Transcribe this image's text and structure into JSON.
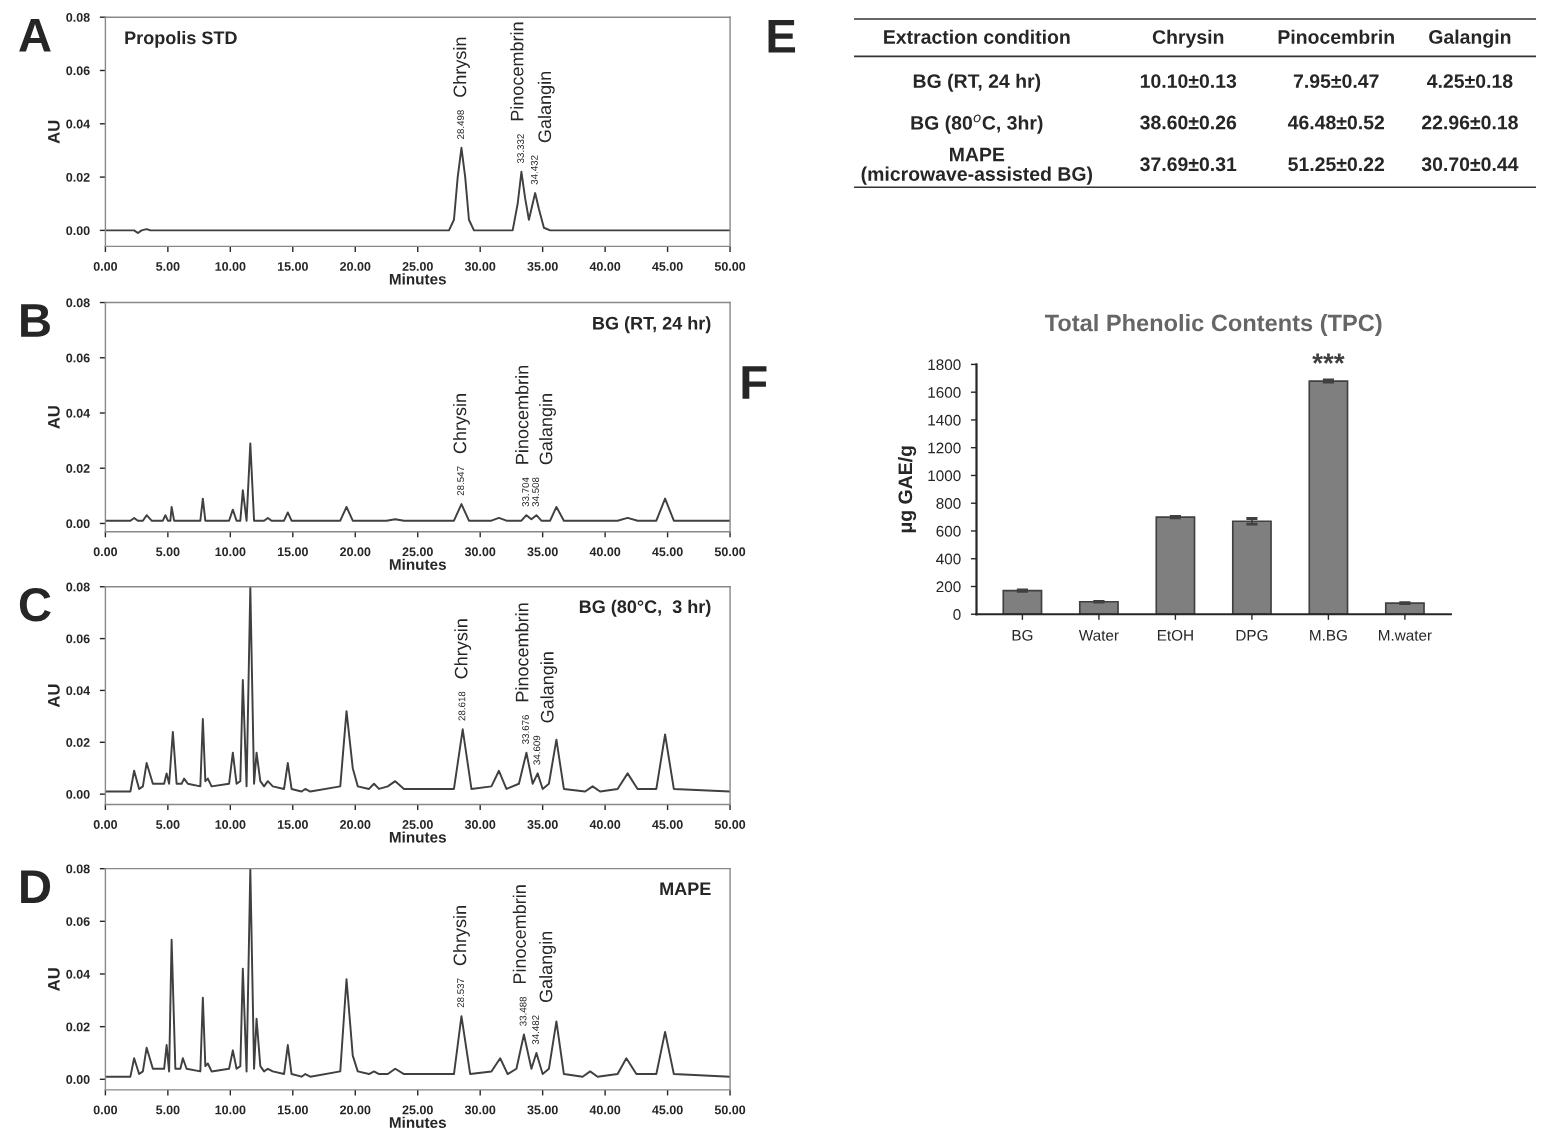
{
  "chart_data": [
    {
      "type": "line",
      "title": "Propolis STD",
      "xlabel": "Minutes",
      "ylabel": "AU",
      "series": [
        {
          "color": "#404040",
          "x": [
            0,
            2.3,
            2.6,
            2.9,
            3.3,
            3.6,
            27.5,
            27.9,
            28.2,
            28.5,
            28.8,
            29.1,
            29.5,
            32.6,
            33.0,
            33.3,
            33.6,
            33.9,
            34.1,
            34.4,
            34.7,
            35.1,
            35.6,
            50
          ],
          "values": [
            0,
            0,
            -0.001,
            0,
            0.0005,
            0,
            0,
            0.004,
            0.02,
            0.031,
            0.02,
            0.004,
            0,
            0,
            0.01,
            0.022,
            0.012,
            0.004,
            0.008,
            0.014,
            0.008,
            0.001,
            0,
            0
          ]
        }
      ],
      "xlim": [
        0,
        50
      ],
      "ylim": [
        -0.006,
        0.08
      ],
      "xticks": [
        {
          "value": 0,
          "label": "0.00"
        },
        {
          "value": 5,
          "label": "5.00"
        },
        {
          "value": 10,
          "label": "10.00"
        },
        {
          "value": 15,
          "label": "15.00"
        },
        {
          "value": 20,
          "label": "20.00"
        },
        {
          "value": 25,
          "label": "25.00"
        },
        {
          "value": 30,
          "label": "30.00"
        },
        {
          "value": 35,
          "label": "35.00"
        },
        {
          "value": 40,
          "label": "40.00"
        },
        {
          "value": 45,
          "label": "45.00"
        },
        {
          "value": 50,
          "label": "50.00"
        }
      ],
      "yticks": [
        {
          "value": 0,
          "label": "0.00"
        },
        {
          "value": 0.02,
          "label": "0.02"
        },
        {
          "value": 0.04,
          "label": "0.04"
        },
        {
          "value": 0.06,
          "label": "0.06"
        },
        {
          "value": 0.08,
          "label": "0.08"
        }
      ],
      "annotations": [
        "A",
        {
          "text": "Chrysin",
          "x": 28.5,
          "y": 0.031
        },
        {
          "text": "28.498",
          "x": 28.5,
          "y": 0.031
        },
        {
          "text": "Pinocembrin",
          "x": 33.3,
          "y": 0.022
        },
        {
          "text": "33.332",
          "x": 33.3,
          "y": 0.022
        },
        {
          "text": "Galangin",
          "x": 34.4,
          "y": 0.014
        },
        {
          "text": "34.432",
          "x": 34.4,
          "y": 0.014
        }
      ]
    },
    {
      "type": "line",
      "title": "BG (RT, 24 hr)",
      "xlabel": "Minutes",
      "ylabel": "AU",
      "series": [
        {
          "color": "#404040",
          "x": [
            0,
            2.0,
            2.3,
            2.6,
            3.0,
            3.3,
            3.7,
            4.6,
            4.8,
            5.0,
            5.2,
            5.3,
            5.5,
            7.6,
            7.8,
            8.0,
            9.9,
            10.2,
            10.5,
            10.8,
            11.0,
            11.3,
            11.6,
            11.9,
            12.7,
            13.0,
            13.3,
            14.3,
            14.6,
            14.9,
            18.8,
            19.3,
            19.8,
            22.5,
            23.2,
            23.9,
            27.9,
            28.5,
            29.1,
            30.9,
            31.5,
            32.1,
            33.3,
            33.7,
            34.1,
            34.5,
            34.9,
            35.6,
            36.1,
            36.7,
            41.0,
            41.8,
            42.6,
            44.1,
            44.8,
            45.5,
            50
          ],
          "values": [
            0.001,
            0.001,
            0.002,
            0.001,
            0.001,
            0.003,
            0.001,
            0.001,
            0.003,
            0.001,
            0.001,
            0.006,
            0.001,
            0.001,
            0.009,
            0.001,
            0.001,
            0.005,
            0.001,
            0.001,
            0.012,
            0.001,
            0.029,
            0.001,
            0.001,
            0.002,
            0.001,
            0.001,
            0.004,
            0.001,
            0.001,
            0.006,
            0.001,
            0.001,
            0.0015,
            0.001,
            0.001,
            0.007,
            0.001,
            0.001,
            0.002,
            0.001,
            0.001,
            0.003,
            0.0015,
            0.003,
            0.001,
            0.001,
            0.006,
            0.001,
            0.001,
            0.002,
            0.001,
            0.001,
            0.009,
            0.001,
            0.001
          ]
        }
      ],
      "xlim": [
        0,
        50
      ],
      "ylim": [
        -0.003,
        0.08
      ],
      "xticks": [
        {
          "value": 0,
          "label": "0.00"
        },
        {
          "value": 5,
          "label": "5.00"
        },
        {
          "value": 10,
          "label": "10.00"
        },
        {
          "value": 15,
          "label": "15.00"
        },
        {
          "value": 20,
          "label": "20.00"
        },
        {
          "value": 25,
          "label": "25.00"
        },
        {
          "value": 30,
          "label": "30.00"
        },
        {
          "value": 35,
          "label": "35.00"
        },
        {
          "value": 40,
          "label": "40.00"
        },
        {
          "value": 45,
          "label": "45.00"
        },
        {
          "value": 50,
          "label": "50.00"
        }
      ],
      "yticks": [
        {
          "value": 0,
          "label": "0.00"
        },
        {
          "value": 0.02,
          "label": "0.02"
        },
        {
          "value": 0.04,
          "label": "0.04"
        },
        {
          "value": 0.06,
          "label": "0.06"
        },
        {
          "value": 0.08,
          "label": "0.08"
        }
      ],
      "annotations": [
        "B",
        {
          "text": "Chrysin",
          "x": 28.5,
          "y": 0.007
        },
        {
          "text": "28.547",
          "x": 28.5,
          "y": 0.007
        },
        {
          "text": "Pinocembrin",
          "x": 33.7,
          "y": 0.003
        },
        {
          "text": "33.704",
          "x": 33.7,
          "y": 0.003
        },
        {
          "text": "Galangin",
          "x": 34.5,
          "y": 0.003
        },
        {
          "text": "34.508",
          "x": 34.5,
          "y": 0.003
        }
      ]
    },
    {
      "type": "line",
      "title": "BG (80°C,  3 hr)",
      "xlabel": "Minutes",
      "ylabel": "AU",
      "series": [
        {
          "color": "#404040",
          "x": [
            0,
            2.0,
            2.3,
            2.7,
            3.0,
            3.3,
            3.8,
            4.7,
            4.9,
            5.1,
            5.4,
            5.7,
            6.1,
            6.3,
            6.6,
            7.6,
            7.8,
            8.0,
            8.2,
            8.5,
            9.9,
            10.2,
            10.5,
            10.8,
            11.0,
            11.3,
            11.6,
            11.9,
            12.1,
            12.4,
            12.7,
            13.0,
            13.4,
            14.3,
            14.6,
            14.9,
            15.7,
            16.0,
            16.4,
            18.8,
            19.3,
            19.8,
            20.2,
            21.1,
            21.5,
            21.9,
            22.6,
            23.2,
            23.9,
            27.9,
            28.6,
            29.3,
            30.9,
            31.5,
            32.1,
            33.1,
            33.7,
            34.2,
            34.6,
            35.0,
            35.5,
            36.1,
            36.7,
            38.4,
            39.0,
            39.6,
            41.0,
            41.8,
            42.6,
            44.1,
            44.8,
            45.5,
            50
          ],
          "values": [
            0.001,
            0.001,
            0.009,
            0.002,
            0.003,
            0.012,
            0.004,
            0.004,
            0.008,
            0.004,
            0.024,
            0.004,
            0.004,
            0.006,
            0.004,
            0.003,
            0.029,
            0.005,
            0.006,
            0.003,
            0.004,
            0.016,
            0.004,
            0.005,
            0.044,
            0.003,
            0.08,
            0.004,
            0.016,
            0.005,
            0.003,
            0.005,
            0.003,
            0.002,
            0.012,
            0.002,
            0.001,
            0.002,
            0.001,
            0.003,
            0.032,
            0.01,
            0.003,
            0.002,
            0.004,
            0.002,
            0.003,
            0.005,
            0.002,
            0.002,
            0.025,
            0.002,
            0.003,
            0.009,
            0.002,
            0.004,
            0.016,
            0.004,
            0.008,
            0.002,
            0.004,
            0.021,
            0.002,
            0.001,
            0.003,
            0.001,
            0.002,
            0.008,
            0.002,
            0.002,
            0.023,
            0.002,
            0.001
          ]
        }
      ],
      "xlim": [
        0,
        50
      ],
      "ylim": [
        -0.004,
        0.08
      ],
      "xticks": [
        {
          "value": 0,
          "label": "0.00"
        },
        {
          "value": 5,
          "label": "5.00"
        },
        {
          "value": 10,
          "label": "10.00"
        },
        {
          "value": 15,
          "label": "15.00"
        },
        {
          "value": 20,
          "label": "20.00"
        },
        {
          "value": 25,
          "label": "25.00"
        },
        {
          "value": 30,
          "label": "30.00"
        },
        {
          "value": 35,
          "label": "35.00"
        },
        {
          "value": 40,
          "label": "40.00"
        },
        {
          "value": 45,
          "label": "45.00"
        },
        {
          "value": 50,
          "label": "50.00"
        }
      ],
      "yticks": [
        {
          "value": 0,
          "label": "0.00"
        },
        {
          "value": 0.02,
          "label": "0.02"
        },
        {
          "value": 0.04,
          "label": "0.04"
        },
        {
          "value": 0.06,
          "label": "0.06"
        },
        {
          "value": 0.08,
          "label": "0.08"
        }
      ],
      "annotations": [
        "C",
        {
          "text": "Chrysin",
          "x": 28.6,
          "y": 0.025
        },
        {
          "text": "28.618",
          "x": 28.6,
          "y": 0.025
        },
        {
          "text": "Pinocembrin",
          "x": 33.7,
          "y": 0.016
        },
        {
          "text": "33.676",
          "x": 33.7,
          "y": 0.016
        },
        {
          "text": "Galangin",
          "x": 34.6,
          "y": 0.008
        },
        {
          "text": "34.609",
          "x": 34.6,
          "y": 0.008
        }
      ]
    },
    {
      "type": "line",
      "title": "MAPE",
      "xlabel": "Minutes",
      "ylabel": "AU",
      "series": [
        {
          "color": "#404040",
          "x": [
            0,
            2.0,
            2.3,
            2.7,
            3.0,
            3.3,
            3.8,
            4.7,
            4.9,
            5.1,
            5.3,
            5.6,
            6.0,
            6.2,
            6.5,
            7.6,
            7.8,
            8.0,
            8.2,
            8.5,
            9.9,
            10.2,
            10.5,
            10.8,
            11.0,
            11.3,
            11.6,
            11.9,
            12.1,
            12.4,
            12.7,
            13.0,
            13.4,
            14.3,
            14.6,
            14.9,
            15.7,
            16.0,
            16.4,
            18.8,
            19.3,
            19.8,
            20.2,
            21.1,
            21.5,
            21.9,
            22.6,
            23.2,
            23.9,
            27.9,
            28.5,
            29.2,
            30.9,
            31.6,
            32.2,
            32.9,
            33.5,
            34.1,
            34.5,
            35.0,
            35.5,
            36.1,
            36.7,
            38.2,
            38.8,
            39.4,
            41.0,
            41.7,
            42.5,
            44.1,
            44.8,
            45.5,
            50
          ],
          "values": [
            0.001,
            0.001,
            0.008,
            0.002,
            0.003,
            0.012,
            0.004,
            0.004,
            0.013,
            0.003,
            0.053,
            0.004,
            0.004,
            0.008,
            0.004,
            0.003,
            0.031,
            0.005,
            0.006,
            0.003,
            0.004,
            0.011,
            0.004,
            0.005,
            0.042,
            0.003,
            0.08,
            0.004,
            0.023,
            0.005,
            0.003,
            0.004,
            0.003,
            0.002,
            0.013,
            0.002,
            0.001,
            0.002,
            0.001,
            0.003,
            0.038,
            0.009,
            0.003,
            0.002,
            0.003,
            0.002,
            0.002,
            0.004,
            0.002,
            0.002,
            0.024,
            0.002,
            0.003,
            0.008,
            0.002,
            0.004,
            0.017,
            0.004,
            0.01,
            0.002,
            0.004,
            0.022,
            0.002,
            0.001,
            0.003,
            0.001,
            0.002,
            0.008,
            0.002,
            0.002,
            0.018,
            0.002,
            0.001
          ]
        }
      ],
      "xlim": [
        0,
        50
      ],
      "ylim": [
        -0.004,
        0.08
      ],
      "xticks": [
        {
          "value": 0,
          "label": "0.00"
        },
        {
          "value": 5,
          "label": "5.00"
        },
        {
          "value": 10,
          "label": "10.00"
        },
        {
          "value": 15,
          "label": "15.00"
        },
        {
          "value": 20,
          "label": "20.00"
        },
        {
          "value": 25,
          "label": "25.00"
        },
        {
          "value": 30,
          "label": "30.00"
        },
        {
          "value": 35,
          "label": "35.00"
        },
        {
          "value": 40,
          "label": "40.00"
        },
        {
          "value": 45,
          "label": "45.00"
        },
        {
          "value": 50,
          "label": "50.00"
        }
      ],
      "yticks": [
        {
          "value": 0,
          "label": "0.00"
        },
        {
          "value": 0.02,
          "label": "0.02"
        },
        {
          "value": 0.04,
          "label": "0.04"
        },
        {
          "value": 0.06,
          "label": "0.06"
        },
        {
          "value": 0.08,
          "label": "0.08"
        }
      ],
      "annotations": [
        "D",
        {
          "text": "Chrysin",
          "x": 28.5,
          "y": 0.024
        },
        {
          "text": "28.537",
          "x": 28.5,
          "y": 0.024
        },
        {
          "text": "Pinocembrin",
          "x": 33.5,
          "y": 0.017
        },
        {
          "text": "33.488",
          "x": 33.5,
          "y": 0.017
        },
        {
          "text": "Galangin",
          "x": 34.5,
          "y": 0.01
        },
        {
          "text": "34.482",
          "x": 34.5,
          "y": 0.01
        }
      ]
    },
    {
      "type": "other",
      "categories": [
        "Extraction condition",
        "Chrysin",
        "Pinocembrin",
        "Galangin"
      ],
      "y_categories": [
        "BG (RT, 24 hr)",
        "BG (80$^{o}$C, 3hr)",
        "MAPE\n(microwave-assisted BG)"
      ],
      "cell_labels": [
        [
          "10.10±0.13",
          "7.95±0.47",
          "4.25±0.18"
        ],
        [
          "38.60±0.26",
          "46.48±0.52",
          "22.96±0.18"
        ],
        [
          "37.69±0.31",
          "51.25±0.22",
          "30.70±0.44"
        ]
      ],
      "annotations": [
        "E"
      ]
    },
    {
      "type": "bar",
      "title": "Total Phenolic Contents (TPC)",
      "ylabel": "μg GAE/g",
      "categories": [
        "BG",
        "Water",
        "EtOH",
        "DPG",
        "M.BG",
        "M.water"
      ],
      "values": [
        170,
        90,
        700,
        670,
        1680,
        80
      ],
      "errors": [
        5,
        3,
        5,
        20,
        8,
        3
      ],
      "color": "#7f7f7f",
      "ylim": [
        0,
        1800
      ],
      "yticks": [
        0,
        200,
        400,
        600,
        800,
        1000,
        1200,
        1400,
        1600,
        1800
      ],
      "annotations": [
        "F",
        {
          "text": "***",
          "x": "M.BG",
          "y": 1700
        }
      ]
    }
  ]
}
